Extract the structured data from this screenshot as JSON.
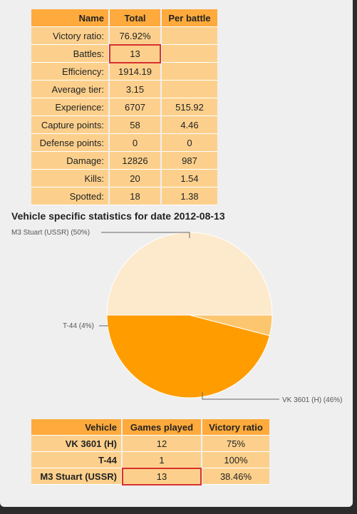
{
  "stats": {
    "headers": {
      "name": "Name",
      "total": "Total",
      "per_battle": "Per battle"
    },
    "rows": [
      {
        "name": "Victory ratio:",
        "total": "76.92%",
        "per_battle": ""
      },
      {
        "name": "Battles:",
        "total": "13",
        "per_battle": ""
      },
      {
        "name": "Efficiency:",
        "total": "1914.19",
        "per_battle": ""
      },
      {
        "name": "Average tier:",
        "total": "3.15",
        "per_battle": ""
      },
      {
        "name": "Experience:",
        "total": "6707",
        "per_battle": "515.92"
      },
      {
        "name": "Capture points:",
        "total": "58",
        "per_battle": "4.46"
      },
      {
        "name": "Defense points:",
        "total": "0",
        "per_battle": "0"
      },
      {
        "name": "Damage:",
        "total": "12826",
        "per_battle": "987"
      },
      {
        "name": "Kills:",
        "total": "20",
        "per_battle": "1.54"
      },
      {
        "name": "Spotted:",
        "total": "18",
        "per_battle": "1.38"
      }
    ]
  },
  "vehicle_section": {
    "title": "Vehicle specific statistics for date 2012-08-13"
  },
  "chart_data": {
    "type": "pie",
    "slices": [
      {
        "label": "M3 Stuart (USSR) (50%)",
        "value": 50,
        "color": "#fde9cc"
      },
      {
        "label": "T-44 (4%)",
        "value": 4,
        "color": "#fcc66e"
      },
      {
        "label": "VK 3601 (H) (46%)",
        "value": 46,
        "color": "#ff9d00"
      }
    ]
  },
  "vehicles": {
    "headers": {
      "vehicle": "Vehicle",
      "games": "Games played",
      "ratio": "Victory ratio"
    },
    "rows": [
      {
        "vehicle": "VK 3601 (H)",
        "games": "12",
        "ratio": "75%"
      },
      {
        "vehicle": "T-44",
        "games": "1",
        "ratio": "100%"
      },
      {
        "vehicle": "M3 Stuart (USSR)",
        "games": "13",
        "ratio": "38.46%"
      }
    ]
  },
  "colors": {
    "header_bg": "#ffaa3c",
    "cell_bg": "#fcd08c",
    "highlight": "#d83030"
  }
}
